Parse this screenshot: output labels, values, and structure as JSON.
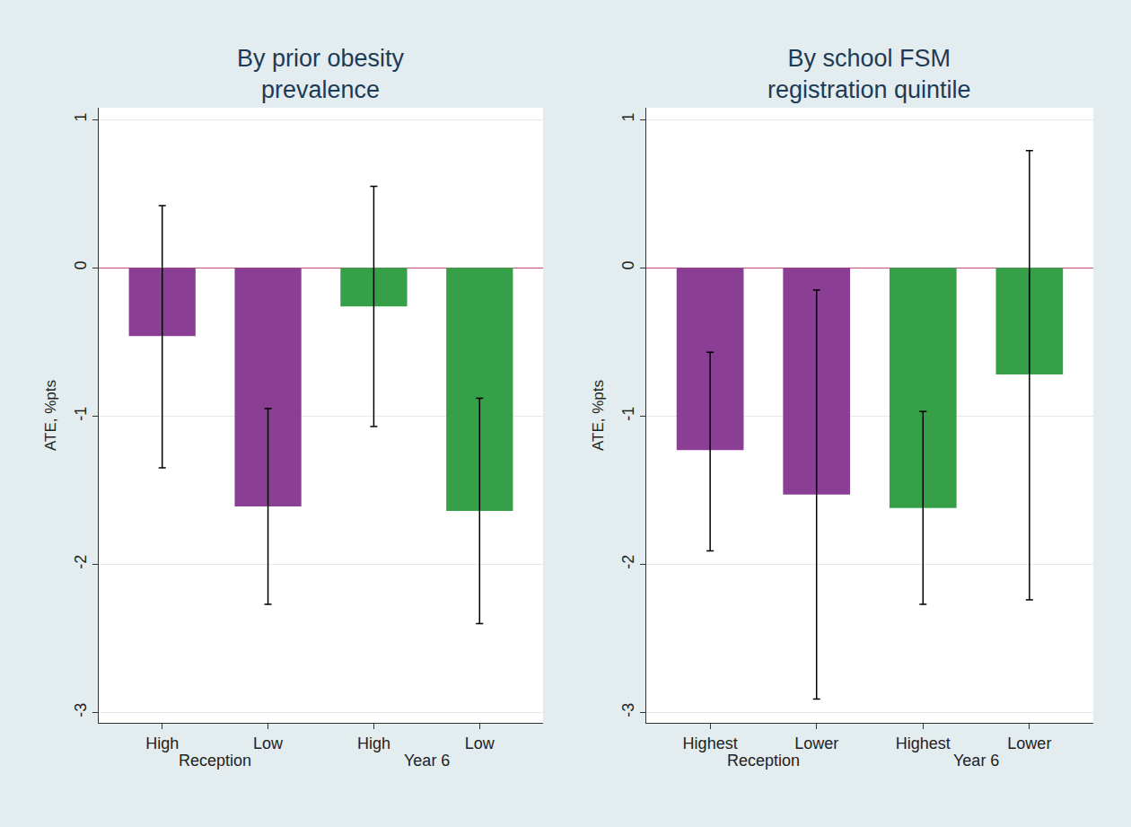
{
  "chart_data": [
    {
      "type": "bar",
      "title": "By prior obesity\nprevalence",
      "y_label": "ATE, %pts",
      "categories": [
        "High",
        "Low",
        "High",
        "Low"
      ],
      "values": [
        -0.46,
        -1.61,
        -0.26,
        -1.64
      ],
      "error_plus": [
        0.88,
        0.66,
        0.81,
        0.76
      ],
      "error_minus": [
        0.89,
        0.66,
        0.81,
        0.76
      ],
      "colors": [
        "#8a3f95",
        "#8a3f95",
        "#35a047",
        "#35a047"
      ],
      "annotations": [
        "Reception",
        "Year 6"
      ],
      "ylim": [
        -3.07,
        1.08
      ],
      "yticks": [
        -3,
        -2,
        -1,
        0,
        1
      ],
      "grid": true
    },
    {
      "type": "bar",
      "title": "By school FSM\nregistration quintile",
      "y_label": "ATE, %pts",
      "categories": [
        "Highest",
        "Lower",
        "Highest",
        "Lower"
      ],
      "values": [
        -1.23,
        -1.53,
        -1.62,
        -0.72
      ],
      "error_plus": [
        0.66,
        1.38,
        0.65,
        1.51
      ],
      "error_minus": [
        0.68,
        1.38,
        0.65,
        1.52
      ],
      "colors": [
        "#8a3f95",
        "#8a3f95",
        "#35a047",
        "#35a047"
      ],
      "annotations": [
        "Reception",
        "Year 6"
      ],
      "ylim": [
        -3.07,
        1.08
      ],
      "yticks": [
        -3,
        -2,
        -1,
        0,
        1
      ],
      "grid": true
    }
  ]
}
